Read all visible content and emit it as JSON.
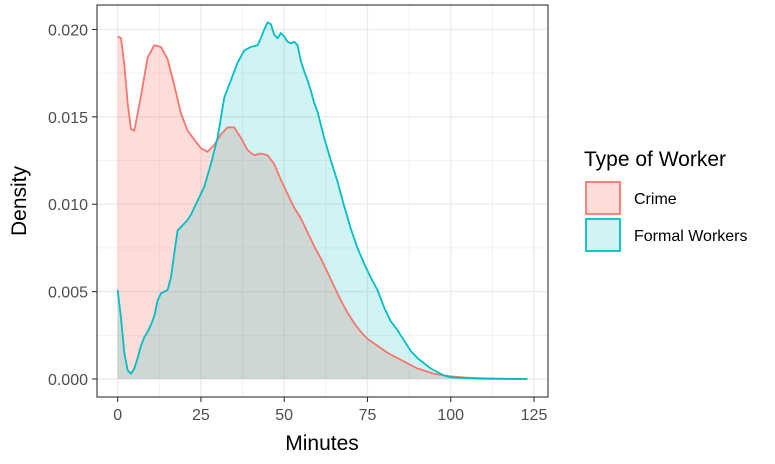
{
  "chart_data": {
    "type": "area",
    "xlabel": "Minutes",
    "ylabel": "Density",
    "xlim": [
      -6.2,
      129.2
    ],
    "ylim": [
      -0.00103,
      0.0214
    ],
    "x_ticks": [
      0,
      25,
      50,
      75,
      100,
      125
    ],
    "x_tick_labels": [
      "0",
      "25",
      "50",
      "75",
      "100",
      "125"
    ],
    "y_ticks": [
      0.0,
      0.005,
      0.01,
      0.015,
      0.02
    ],
    "y_tick_labels": [
      "0.000",
      "0.005",
      "0.010",
      "0.015",
      "0.020"
    ],
    "grid": true,
    "legend": {
      "title": "Type of Worker",
      "placement": "right",
      "entries": [
        "Crime",
        "Formal Workers"
      ]
    },
    "series": [
      {
        "name": "Crime",
        "line_color": "#F8766D",
        "fill_color": "#F8766D",
        "fill_opacity": 0.25,
        "x": [
          0,
          1,
          2,
          3,
          4,
          5,
          7,
          9,
          11,
          13,
          15,
          17,
          19,
          21,
          23,
          25,
          27,
          29,
          31,
          33,
          35,
          37,
          39,
          41,
          43,
          45,
          47,
          49,
          51,
          53,
          55,
          57,
          59,
          61,
          63,
          65,
          67,
          69,
          71,
          73,
          75,
          78,
          81,
          84,
          87,
          90,
          95,
          100,
          105,
          110,
          115,
          120,
          123
        ],
        "y": [
          0.0196,
          0.0195,
          0.018,
          0.0158,
          0.0143,
          0.0142,
          0.0162,
          0.0184,
          0.0191,
          0.019,
          0.0183,
          0.0168,
          0.0152,
          0.0142,
          0.0137,
          0.0132,
          0.013,
          0.0134,
          0.014,
          0.0144,
          0.0144,
          0.0138,
          0.0131,
          0.0128,
          0.0129,
          0.0128,
          0.0123,
          0.0114,
          0.0106,
          0.0098,
          0.0092,
          0.0084,
          0.0076,
          0.0069,
          0.0061,
          0.0053,
          0.0045,
          0.0038,
          0.0032,
          0.0027,
          0.0023,
          0.0019,
          0.0015,
          0.0012,
          0.0009,
          0.0006,
          0.0003,
          0.00015,
          8e-05,
          4e-05,
          2e-05,
          1e-05,
          0.0
        ]
      },
      {
        "name": "Formal Workers",
        "line_color": "#00BFC4",
        "fill_color": "#00BFC4",
        "fill_opacity": 0.18,
        "x": [
          0,
          1,
          2,
          3,
          4,
          5,
          6,
          7,
          8,
          9,
          10,
          11,
          12,
          13,
          14,
          15,
          16,
          17,
          18,
          19,
          20,
          21,
          22,
          24,
          26,
          28,
          30,
          32,
          34,
          36,
          38,
          40,
          42,
          43,
          44,
          45,
          46,
          47,
          48,
          49,
          50,
          51,
          52,
          53,
          54,
          55,
          56,
          57,
          58,
          59,
          60,
          62,
          64,
          66,
          68,
          70,
          72,
          74,
          76,
          78,
          80,
          82,
          84,
          86,
          88,
          90,
          92,
          94,
          96,
          98,
          100,
          104,
          108,
          112,
          116,
          120,
          123
        ],
        "y": [
          0.0051,
          0.0035,
          0.0015,
          0.0005,
          0.0003,
          0.0006,
          0.0012,
          0.0019,
          0.0024,
          0.0027,
          0.0031,
          0.0036,
          0.0045,
          0.0049,
          0.005,
          0.0051,
          0.0058,
          0.0072,
          0.0085,
          0.0087,
          0.0089,
          0.0091,
          0.0094,
          0.0102,
          0.011,
          0.0123,
          0.0138,
          0.0161,
          0.0171,
          0.0181,
          0.0188,
          0.019,
          0.0191,
          0.0195,
          0.02,
          0.0204,
          0.0203,
          0.0197,
          0.0195,
          0.0198,
          0.0196,
          0.0193,
          0.0192,
          0.0193,
          0.0191,
          0.0182,
          0.0176,
          0.0171,
          0.0165,
          0.0158,
          0.0153,
          0.0138,
          0.0125,
          0.0113,
          0.0099,
          0.0086,
          0.0075,
          0.0066,
          0.0058,
          0.0051,
          0.0041,
          0.0033,
          0.0028,
          0.0022,
          0.0016,
          0.0012,
          0.0009,
          0.0006,
          0.0004,
          0.0002,
          0.0001,
          5e-05,
          2e-05,
          1e-05,
          0.0,
          0.0,
          0.0
        ]
      }
    ]
  }
}
